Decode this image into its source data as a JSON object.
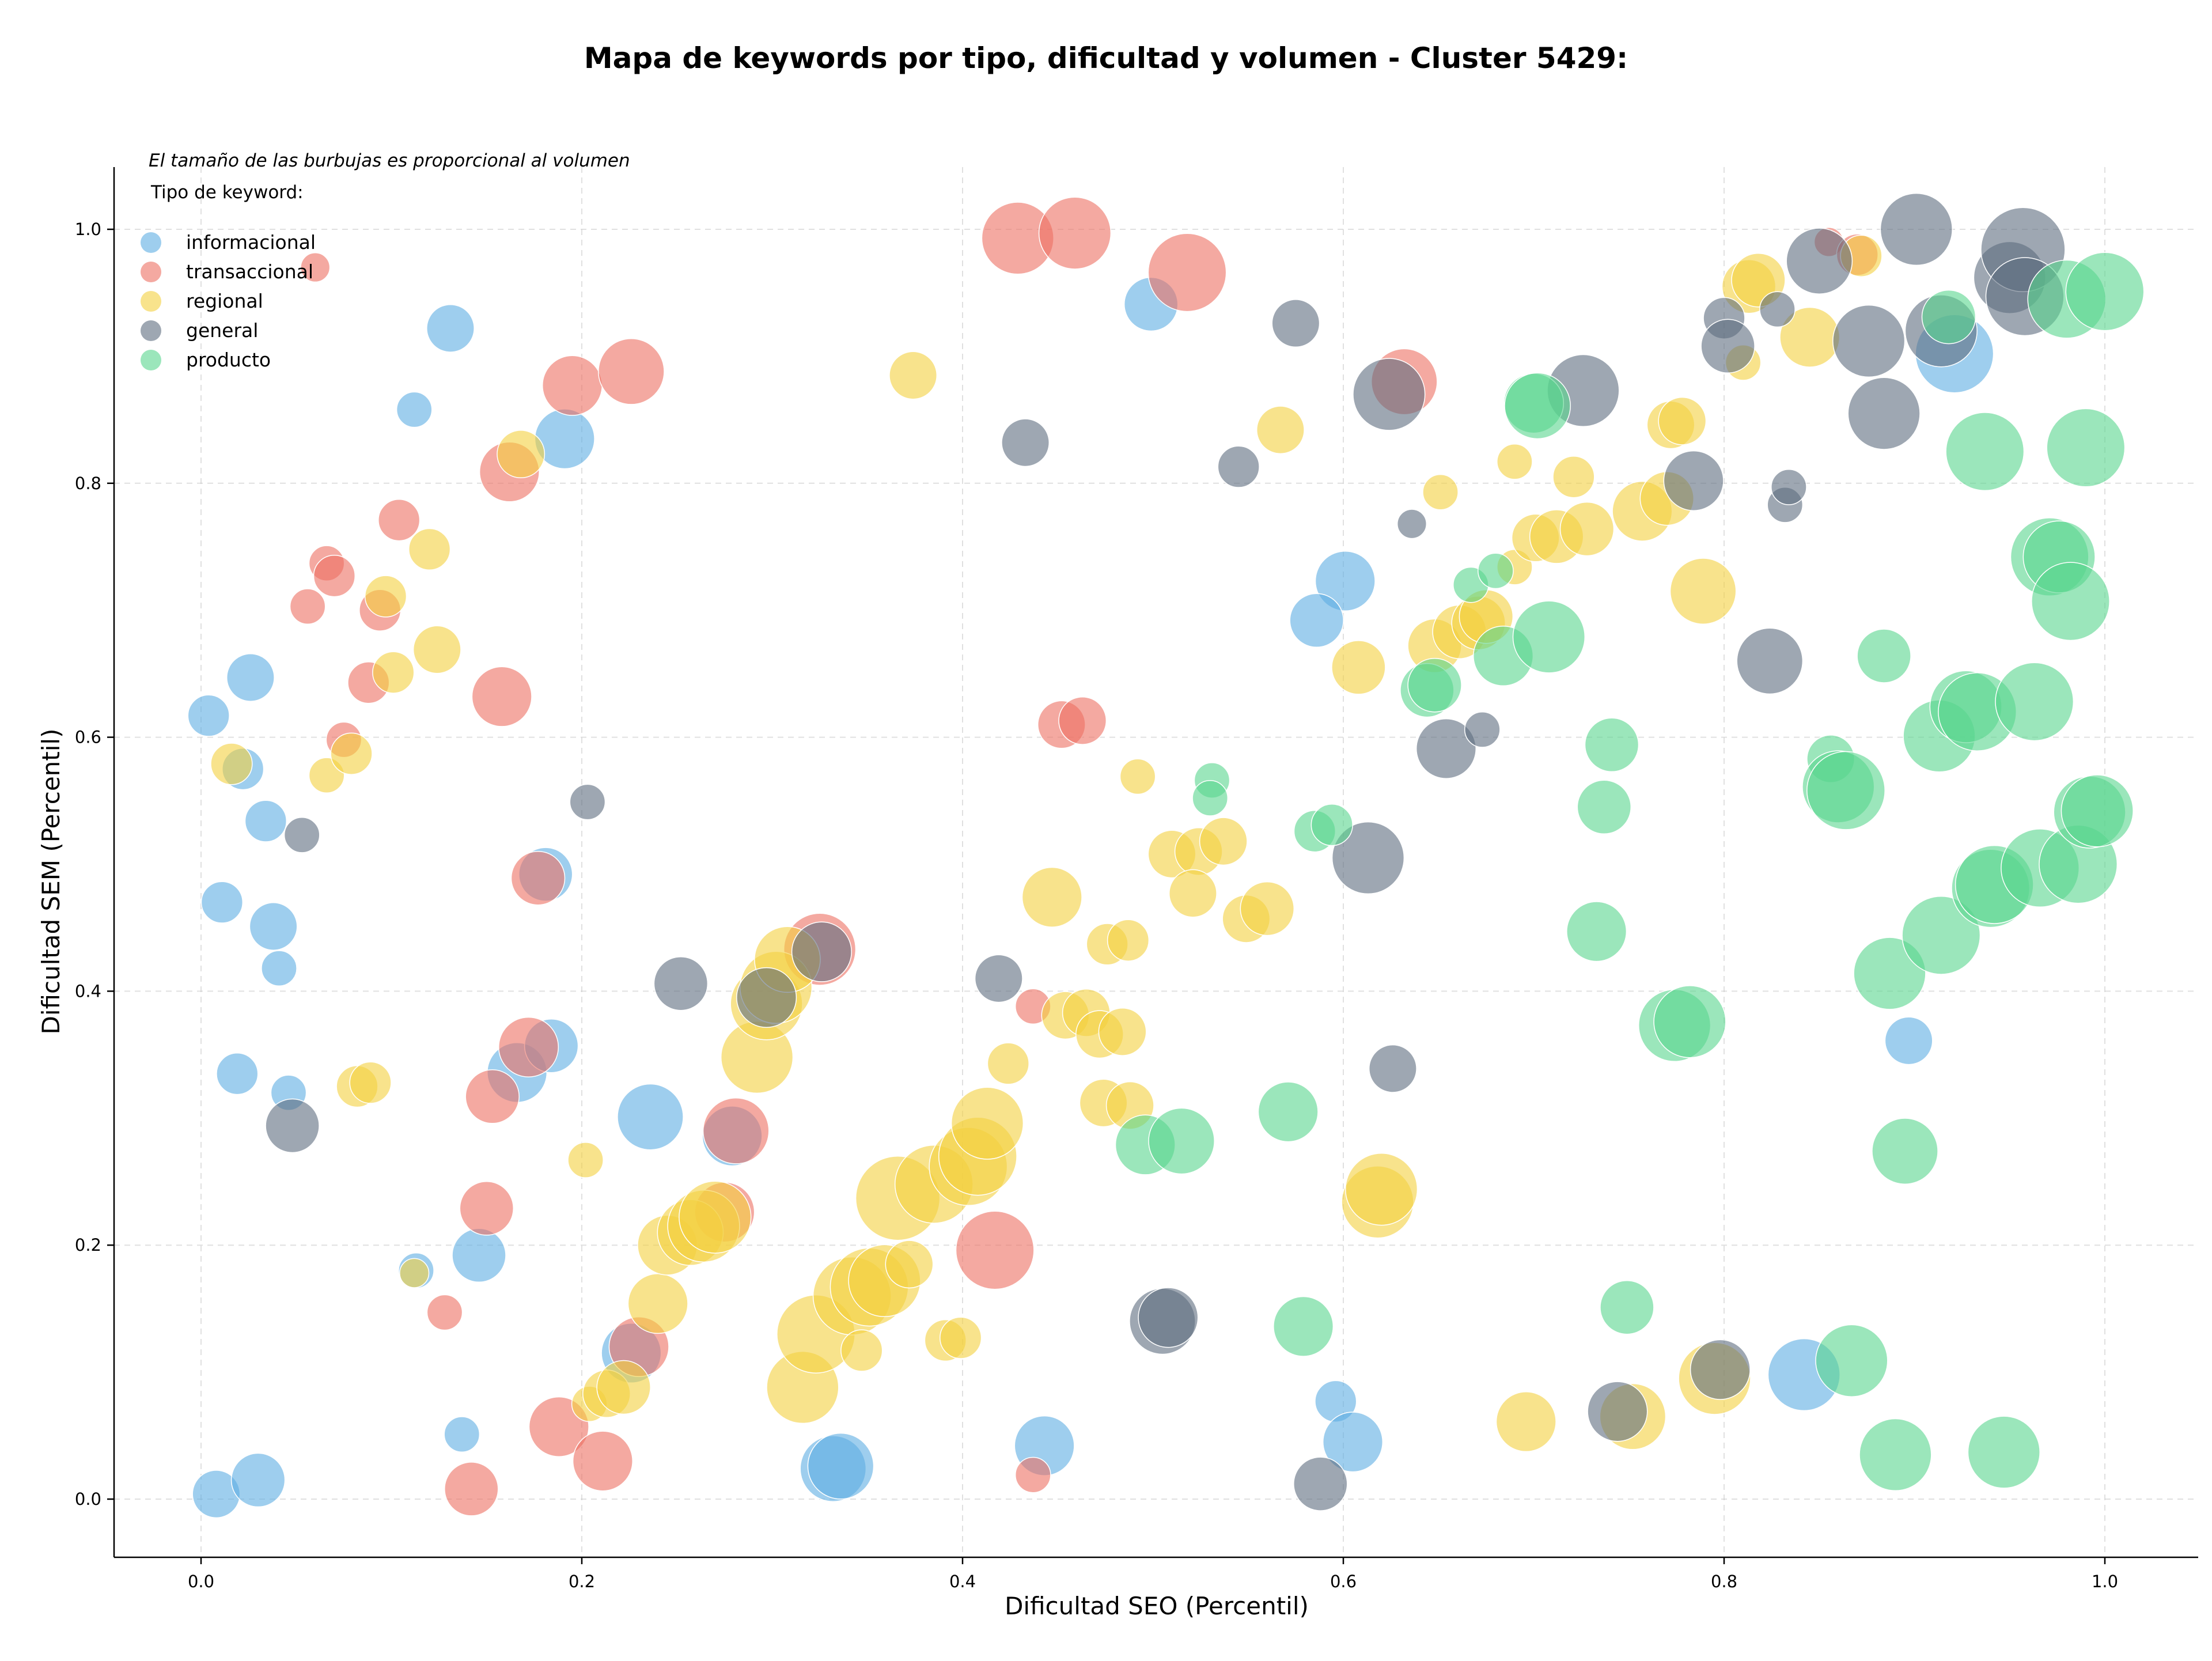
{
  "chart_data": {
    "type": "scatter",
    "title": "Mapa de keywords por tipo, dificultad y volumen - Cluster 5429:",
    "note": "El tamaño de las burbujas es proporcional al volumen",
    "xlabel": "Dificultad SEO (Percentil)",
    "ylabel": "Dificultad SEM (Percentil)",
    "xlim": [
      -0.045,
      1.05
    ],
    "ylim": [
      -0.045,
      1.05
    ],
    "xticks": [
      "0.0",
      "0.2",
      "0.4",
      "0.6",
      "0.8",
      "1.0"
    ],
    "yticks": [
      "0.0",
      "0.2",
      "0.4",
      "0.6",
      "0.8",
      "1.0"
    ],
    "grid": true,
    "legend": {
      "title": "Tipo de keyword:",
      "placement": "top-left"
    },
    "series": [
      {
        "name": "informacional",
        "color": "#5DADE2",
        "points": [
          [
            0.004,
            0.617,
            3
          ],
          [
            0.026,
            0.647,
            4
          ],
          [
            0.022,
            0.575,
            3
          ],
          [
            0.034,
            0.534,
            3
          ],
          [
            0.011,
            0.47,
            3
          ],
          [
            0.038,
            0.451,
            4
          ],
          [
            0.041,
            0.418,
            2
          ],
          [
            0.019,
            0.335,
            3
          ],
          [
            0.046,
            0.32,
            2
          ],
          [
            0.008,
            0.004,
            4
          ],
          [
            0.03,
            0.015,
            5
          ],
          [
            0.131,
            0.922,
            4
          ],
          [
            0.112,
            0.858,
            2
          ],
          [
            0.191,
            0.835,
            6
          ],
          [
            0.181,
            0.492,
            5
          ],
          [
            0.166,
            0.336,
            6
          ],
          [
            0.184,
            0.357,
            5
          ],
          [
            0.146,
            0.192,
            5
          ],
          [
            0.113,
            0.18,
            2
          ],
          [
            0.137,
            0.051,
            2
          ],
          [
            0.236,
            0.301,
            7
          ],
          [
            0.279,
            0.286,
            6
          ],
          [
            0.226,
            0.115,
            6
          ],
          [
            0.332,
            0.024,
            7
          ],
          [
            0.336,
            0.026,
            7
          ],
          [
            0.443,
            0.042,
            6
          ],
          [
            0.499,
            0.941,
            5
          ],
          [
            0.601,
            0.723,
            6
          ],
          [
            0.586,
            0.692,
            5
          ],
          [
            0.596,
            0.077,
            3
          ],
          [
            0.605,
            0.045,
            6
          ],
          [
            0.842,
            0.098,
            8
          ],
          [
            0.897,
            0.361,
            4
          ],
          [
            0.921,
            0.902,
            9
          ]
        ]
      },
      {
        "name": "transaccional",
        "color": "#EC7063",
        "points": [
          [
            0.06,
            0.97,
            1
          ],
          [
            0.066,
            0.737,
            2
          ],
          [
            0.07,
            0.727,
            3
          ],
          [
            0.056,
            0.703,
            2
          ],
          [
            0.104,
            0.771,
            3
          ],
          [
            0.094,
            0.7,
            3
          ],
          [
            0.088,
            0.643,
            3
          ],
          [
            0.075,
            0.598,
            2
          ],
          [
            0.162,
            0.809,
            6
          ],
          [
            0.195,
            0.877,
            6
          ],
          [
            0.226,
            0.888,
            7
          ],
          [
            0.158,
            0.632,
            6
          ],
          [
            0.177,
            0.489,
            5
          ],
          [
            0.172,
            0.356,
            6
          ],
          [
            0.153,
            0.317,
            5
          ],
          [
            0.15,
            0.229,
            5
          ],
          [
            0.128,
            0.147,
            2
          ],
          [
            0.188,
            0.057,
            6
          ],
          [
            0.142,
            0.008,
            5
          ],
          [
            0.211,
            0.03,
            6
          ],
          [
            0.23,
            0.12,
            6
          ],
          [
            0.275,
            0.226,
            6
          ],
          [
            0.281,
            0.29,
            7
          ],
          [
            0.325,
            0.433,
            8
          ],
          [
            0.429,
            0.993,
            8
          ],
          [
            0.459,
            0.997,
            8
          ],
          [
            0.518,
            0.966,
            9
          ],
          [
            0.452,
            0.61,
            4
          ],
          [
            0.463,
            0.613,
            4
          ],
          [
            0.417,
            0.196,
            9
          ],
          [
            0.437,
            0.388,
            2
          ],
          [
            0.437,
            0.019,
            2
          ],
          [
            0.632,
            0.88,
            7
          ],
          [
            0.855,
            0.99,
            1
          ],
          [
            0.87,
            0.98,
            3
          ]
        ]
      },
      {
        "name": "regional",
        "color": "#F4D03F",
        "points": [
          [
            0.016,
            0.579,
            3
          ],
          [
            0.066,
            0.57,
            2
          ],
          [
            0.079,
            0.587,
            3
          ],
          [
            0.097,
            0.711,
            3
          ],
          [
            0.12,
            0.748,
            3
          ],
          [
            0.101,
            0.651,
            3
          ],
          [
            0.124,
            0.669,
            4
          ],
          [
            0.168,
            0.823,
            4
          ],
          [
            0.082,
            0.325,
            3
          ],
          [
            0.089,
            0.328,
            3
          ],
          [
            0.112,
            0.178,
            1
          ],
          [
            0.202,
            0.267,
            2
          ],
          [
            0.204,
            0.075,
            2
          ],
          [
            0.213,
            0.083,
            4
          ],
          [
            0.222,
            0.088,
            5
          ],
          [
            0.24,
            0.154,
            6
          ],
          [
            0.245,
            0.2,
            6
          ],
          [
            0.257,
            0.21,
            7
          ],
          [
            0.264,
            0.215,
            8
          ],
          [
            0.27,
            0.222,
            8
          ],
          [
            0.292,
            0.348,
            8
          ],
          [
            0.297,
            0.39,
            8
          ],
          [
            0.302,
            0.403,
            8
          ],
          [
            0.308,
            0.425,
            7
          ],
          [
            0.316,
            0.088,
            8
          ],
          [
            0.323,
            0.13,
            9
          ],
          [
            0.342,
            0.16,
            9
          ],
          [
            0.347,
            0.117,
            3
          ],
          [
            0.351,
            0.167,
            9
          ],
          [
            0.359,
            0.172,
            8
          ],
          [
            0.366,
            0.237,
            10
          ],
          [
            0.372,
            0.185,
            4
          ],
          [
            0.374,
            0.885,
            4
          ],
          [
            0.385,
            0.248,
            9
          ],
          [
            0.391,
            0.125,
            3
          ],
          [
            0.399,
            0.127,
            3
          ],
          [
            0.403,
            0.262,
            9
          ],
          [
            0.408,
            0.27,
            9
          ],
          [
            0.413,
            0.296,
            8
          ],
          [
            0.424,
            0.343,
            3
          ],
          [
            0.447,
            0.474,
            6
          ],
          [
            0.454,
            0.381,
            4
          ],
          [
            0.465,
            0.383,
            4
          ],
          [
            0.472,
            0.366,
            4
          ],
          [
            0.474,
            0.312,
            4
          ],
          [
            0.476,
            0.437,
            3
          ],
          [
            0.484,
            0.368,
            4
          ],
          [
            0.488,
            0.31,
            4
          ],
          [
            0.487,
            0.44,
            3
          ],
          [
            0.492,
            0.569,
            2
          ],
          [
            0.51,
            0.508,
            4
          ],
          [
            0.524,
            0.51,
            4
          ],
          [
            0.521,
            0.477,
            4
          ],
          [
            0.537,
            0.518,
            4
          ],
          [
            0.549,
            0.457,
            4
          ],
          [
            0.56,
            0.465,
            5
          ],
          [
            0.567,
            0.842,
            4
          ],
          [
            0.618,
            0.234,
            8
          ],
          [
            0.62,
            0.244,
            8
          ],
          [
            0.608,
            0.655,
            5
          ],
          [
            0.648,
            0.672,
            5
          ],
          [
            0.661,
            0.683,
            5
          ],
          [
            0.671,
            0.69,
            5
          ],
          [
            0.675,
            0.695,
            5
          ],
          [
            0.69,
            0.817,
            2
          ],
          [
            0.69,
            0.734,
            2
          ],
          [
            0.701,
            0.757,
            4
          ],
          [
            0.712,
            0.758,
            5
          ],
          [
            0.721,
            0.805,
            3
          ],
          [
            0.728,
            0.764,
            5
          ],
          [
            0.757,
            0.778,
            6
          ],
          [
            0.77,
            0.788,
            5
          ],
          [
            0.772,
            0.846,
            4
          ],
          [
            0.778,
            0.849,
            4
          ],
          [
            0.789,
            0.715,
            7
          ],
          [
            0.795,
            0.095,
            8
          ],
          [
            0.81,
            0.895,
            2
          ],
          [
            0.813,
            0.955,
            5
          ],
          [
            0.818,
            0.96,
            5
          ],
          [
            0.845,
            0.915,
            6
          ],
          [
            0.872,
            0.979,
            3
          ],
          [
            0.696,
            0.061,
            6
          ],
          [
            0.752,
            0.065,
            7
          ],
          [
            0.651,
            0.793,
            2
          ]
        ]
      },
      {
        "name": "general",
        "color": "#5D6D7E",
        "points": [
          [
            0.053,
            0.523,
            2
          ],
          [
            0.048,
            0.294,
            5
          ],
          [
            0.203,
            0.549,
            2
          ],
          [
            0.252,
            0.406,
            5
          ],
          [
            0.297,
            0.395,
            6
          ],
          [
            0.419,
            0.41,
            4
          ],
          [
            0.433,
            0.832,
            4
          ],
          [
            0.326,
            0.431,
            6
          ],
          [
            0.505,
            0.14,
            7
          ],
          [
            0.508,
            0.143,
            6
          ],
          [
            0.545,
            0.813,
            3
          ],
          [
            0.575,
            0.926,
            4
          ],
          [
            0.588,
            0.012,
            5
          ],
          [
            0.613,
            0.505,
            8
          ],
          [
            0.626,
            0.339,
            4
          ],
          [
            0.624,
            0.87,
            8
          ],
          [
            0.636,
            0.768,
            1
          ],
          [
            0.654,
            0.591,
            6
          ],
          [
            0.673,
            0.606,
            2
          ],
          [
            0.726,
            0.873,
            8
          ],
          [
            0.744,
            0.069,
            6
          ],
          [
            0.784,
            0.802,
            6
          ],
          [
            0.8,
            0.93,
            3
          ],
          [
            0.802,
            0.908,
            5
          ],
          [
            0.798,
            0.102,
            6
          ],
          [
            0.824,
            0.66,
            7
          ],
          [
            0.828,
            0.937,
            2
          ],
          [
            0.832,
            0.783,
            2
          ],
          [
            0.834,
            0.797,
            2
          ],
          [
            0.85,
            0.975,
            7
          ],
          [
            0.876,
            0.912,
            8
          ],
          [
            0.884,
            0.855,
            8
          ],
          [
            0.901,
            1.0,
            8
          ],
          [
            0.914,
            0.92,
            8
          ],
          [
            0.95,
            0.962,
            8
          ],
          [
            0.957,
            0.984,
            10
          ],
          [
            0.958,
            0.947,
            9
          ]
        ]
      },
      {
        "name": "producto",
        "color": "#58D68D",
        "points": [
          [
            0.496,
            0.279,
            6
          ],
          [
            0.515,
            0.282,
            7
          ],
          [
            0.531,
            0.566,
            2
          ],
          [
            0.53,
            0.552,
            2
          ],
          [
            0.571,
            0.305,
            6
          ],
          [
            0.579,
            0.136,
            6
          ],
          [
            0.585,
            0.526,
            3
          ],
          [
            0.594,
            0.531,
            3
          ],
          [
            0.644,
            0.637,
            5
          ],
          [
            0.648,
            0.641,
            5
          ],
          [
            0.667,
            0.72,
            2
          ],
          [
            0.68,
            0.731,
            2
          ],
          [
            0.684,
            0.664,
            6
          ],
          [
            0.7,
            0.863,
            6
          ],
          [
            0.702,
            0.861,
            7
          ],
          [
            0.708,
            0.679,
            8
          ],
          [
            0.733,
            0.447,
            6
          ],
          [
            0.737,
            0.545,
            5
          ],
          [
            0.741,
            0.594,
            5
          ],
          [
            0.749,
            0.151,
            5
          ],
          [
            0.774,
            0.373,
            8
          ],
          [
            0.782,
            0.376,
            8
          ],
          [
            0.856,
            0.583,
            4
          ],
          [
            0.86,
            0.561,
            8
          ],
          [
            0.864,
            0.558,
            9
          ],
          [
            0.867,
            0.109,
            8
          ],
          [
            0.884,
            0.664,
            5
          ],
          [
            0.887,
            0.414,
            8
          ],
          [
            0.89,
            0.035,
            8
          ],
          [
            0.895,
            0.274,
            7
          ],
          [
            0.913,
            0.601,
            8
          ],
          [
            0.914,
            0.444,
            9
          ],
          [
            0.918,
            0.931,
            5
          ],
          [
            0.927,
            0.624,
            8
          ],
          [
            0.933,
            0.62,
            9
          ],
          [
            0.937,
            0.825,
            9
          ],
          [
            0.94,
            0.481,
            9
          ],
          [
            0.942,
            0.484,
            9
          ],
          [
            0.947,
            0.037,
            8
          ],
          [
            0.963,
            0.628,
            9
          ],
          [
            0.966,
            0.497,
            9
          ],
          [
            0.971,
            0.742,
            9
          ],
          [
            0.976,
            0.742,
            8
          ],
          [
            0.98,
            0.945,
            9
          ],
          [
            0.982,
            0.707,
            9
          ],
          [
            0.986,
            0.5,
            9
          ],
          [
            0.99,
            0.828,
            9
          ],
          [
            0.992,
            0.541,
            8
          ],
          [
            0.996,
            0.542,
            8
          ],
          [
            1.0,
            0.951,
            9
          ]
        ]
      }
    ]
  }
}
